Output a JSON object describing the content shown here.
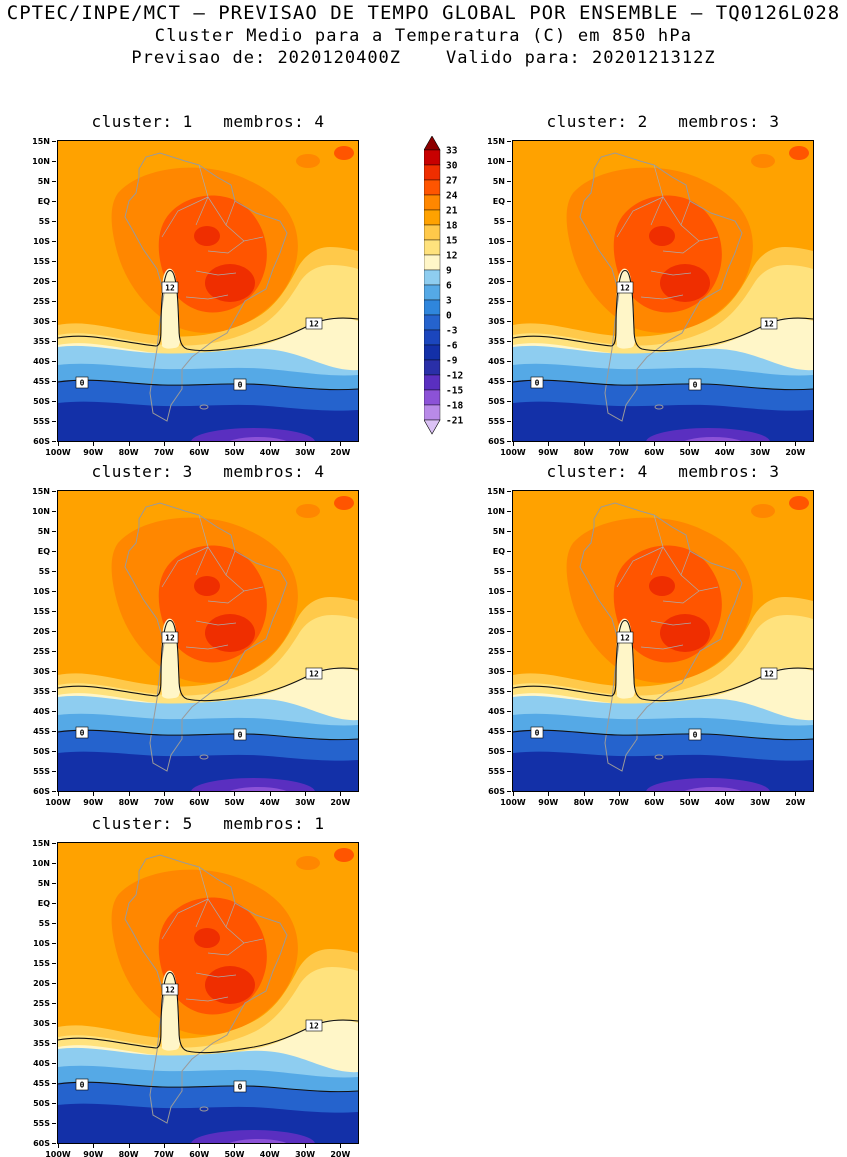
{
  "header": {
    "line1": "CPTEC/INPE/MCT — PREVISAO DE TEMPO GLOBAL POR ENSEMBLE — TQ0126L028",
    "line2": "Cluster Medio para a Temperatura (C) em 850 hPa",
    "line3": "Previsao de: 2020120400Z    Valido para: 2020121312Z"
  },
  "panels": [
    {
      "label": "cluster: 1   membros: 4",
      "cluster": "1",
      "membros": "4"
    },
    {
      "label": "cluster: 2   membros: 3",
      "cluster": "2",
      "membros": "3"
    },
    {
      "label": "cluster: 3   membros: 4",
      "cluster": "3",
      "membros": "4"
    },
    {
      "label": "cluster: 4   membros: 3",
      "cluster": "4",
      "membros": "3"
    },
    {
      "label": "cluster: 5   membros: 1",
      "cluster": "5",
      "membros": "1"
    }
  ],
  "chart_data": {
    "type": "heatmap",
    "title": "Cluster Medio para a Temperatura (C) em 850 hPa",
    "organization": "CPTEC/INPE/MCT",
    "model": "TQ0126L028",
    "forecast_init": "2020120400Z",
    "forecast_valid": "2020121312Z",
    "variable": "Temperatura",
    "units": "C",
    "level": "850 hPa",
    "region": "South America",
    "panels": [
      {
        "cluster": 1,
        "membros": 4
      },
      {
        "cluster": 2,
        "membros": 3
      },
      {
        "cluster": 3,
        "membros": 4
      },
      {
        "cluster": 4,
        "membros": 3
      },
      {
        "cluster": 5,
        "membros": 1
      }
    ],
    "colorbar": {
      "levels": [
        33,
        30,
        27,
        24,
        21,
        18,
        15,
        12,
        9,
        6,
        3,
        0,
        -3,
        -6,
        -9,
        -12,
        -15,
        -18,
        -21
      ],
      "colors_top_to_bottom": [
        "#8c0000",
        "#c80000",
        "#ef2e00",
        "#ff5500",
        "#ff8700",
        "#ffa200",
        "#ffc94a",
        "#ffe27d",
        "#fff6c8",
        "#8ecdf0",
        "#55a9e6",
        "#2f86dc",
        "#2563cd",
        "#1b46bd",
        "#1330a8",
        "#2a2fa8",
        "#5a2fc0",
        "#8c52d7",
        "#b98ae8",
        "#dbc2f5"
      ]
    },
    "axes": {
      "lat_ticks": [
        "15N",
        "10N",
        "5N",
        "EQ",
        "5S",
        "10S",
        "15S",
        "20S",
        "25S",
        "30S",
        "35S",
        "40S",
        "45S",
        "50S",
        "55S",
        "60S"
      ],
      "lon_ticks": [
        "100W",
        "90W",
        "80W",
        "70W",
        "60W",
        "50W",
        "40W",
        "30W",
        "20W"
      ],
      "grid": false
    },
    "contour_labels": [
      "12",
      "0"
    ]
  }
}
